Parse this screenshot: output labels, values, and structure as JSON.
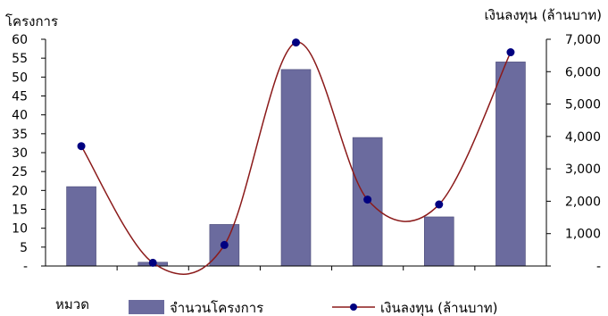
{
  "chart_data": {
    "type": "bar+line",
    "categories": [
      "",
      "",
      "",
      "",
      "",
      "",
      ""
    ],
    "series": [
      {
        "name": "จำนวนโครงการ",
        "kind": "bar",
        "axis": "left",
        "color": "#6b6b9e",
        "values": [
          21,
          1,
          11,
          52,
          34,
          13,
          54
        ]
      },
      {
        "name": "เงินลงทุน (ล้านบาท)",
        "kind": "line",
        "axis": "right",
        "color": "#8b1a1a",
        "marker_color": "#000080",
        "smooth": true,
        "values": [
          3700,
          100,
          650,
          6900,
          2050,
          1900,
          6600
        ]
      }
    ],
    "y_left": {
      "label": "โครงการ",
      "ylim": [
        0,
        60
      ],
      "ticks": [
        0,
        5,
        10,
        15,
        20,
        25,
        30,
        35,
        40,
        45,
        50,
        55,
        60
      ],
      "tick_labels": [
        "-",
        "5",
        "10",
        "15",
        "20",
        "25",
        "30",
        "35",
        "40",
        "45",
        "50",
        "55",
        "60"
      ]
    },
    "y_right": {
      "label": "เงินลงทุน (ล้านบาท)",
      "ylim": [
        0,
        7000
      ],
      "ticks": [
        0,
        1000,
        2000,
        3000,
        4000,
        5000,
        6000,
        7000
      ],
      "tick_labels": [
        "-",
        "1,000",
        "2,000",
        "3,000",
        "4,000",
        "5,000",
        "6,000",
        "7,000"
      ]
    },
    "xlabel": "หมวด",
    "grid": false,
    "legend_position": "bottom"
  }
}
